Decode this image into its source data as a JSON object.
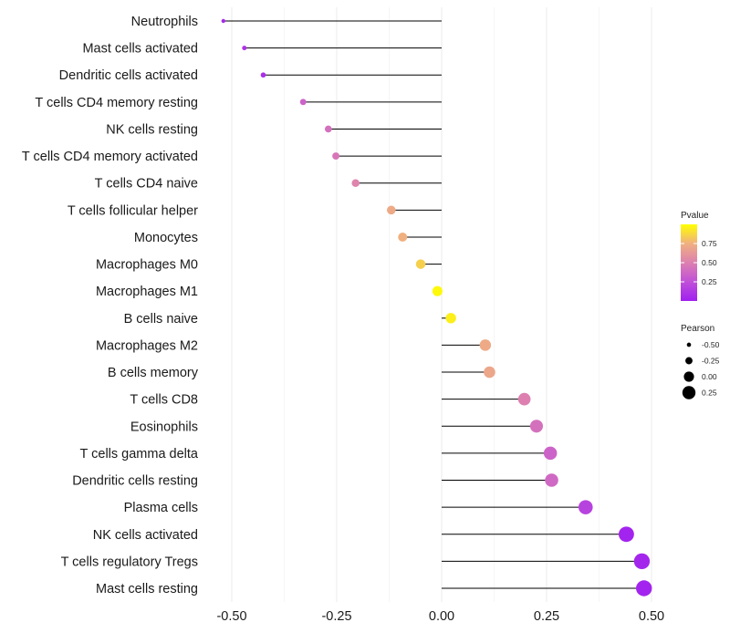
{
  "chart_data": {
    "type": "lollipop",
    "title": "",
    "xlabel": "",
    "ylabel": "",
    "xlim": [
      -0.55,
      0.52
    ],
    "xticks": [
      -0.5,
      -0.25,
      0.0,
      0.25,
      0.5
    ],
    "xtick_labels": [
      "-0.50",
      "-0.25",
      "0.00",
      "0.25",
      "0.50"
    ],
    "grid": true,
    "categories": [
      "Neutrophils",
      "Mast cells activated",
      "Dendritic cells activated",
      "T cells CD4 memory resting",
      "NK cells resting",
      "T cells CD4 memory activated",
      "T cells CD4 naive",
      "T cells follicular helper",
      "Monocytes",
      "Macrophages M0",
      "Macrophages M1",
      "B cells naive",
      "Macrophages M2",
      "B cells memory",
      "T cells CD8",
      "Eosinophils",
      "T cells gamma delta",
      "Dendritic cells resting",
      "Plasma cells",
      "NK cells activated",
      "T cells regulatory  Tregs ",
      "Mast cells resting"
    ],
    "pearson": [
      -0.52,
      -0.47,
      -0.425,
      -0.33,
      -0.27,
      -0.252,
      -0.205,
      -0.12,
      -0.093,
      -0.05,
      -0.01,
      0.022,
      0.104,
      0.114,
      0.197,
      0.226,
      0.259,
      0.262,
      0.343,
      0.44,
      0.477,
      0.482
    ],
    "pvalue": [
      0.05,
      0.1,
      0.08,
      0.35,
      0.42,
      0.45,
      0.52,
      0.72,
      0.75,
      0.85,
      0.98,
      0.95,
      0.72,
      0.7,
      0.5,
      0.42,
      0.35,
      0.38,
      0.18,
      0.02,
      0.03,
      0.02
    ],
    "color_legend": {
      "title": "Pvalue",
      "ticks": [
        0.75,
        0.5,
        0.25
      ],
      "tick_labels": [
        "0.75",
        "0.50",
        "0.25"
      ],
      "range": [
        0.0,
        1.0
      ],
      "colors": [
        "#a020f0",
        "#c050d8",
        "#dd80b0",
        "#f0b080",
        "#ffff00"
      ]
    },
    "size_legend": {
      "title": "Pearson",
      "values": [
        -0.5,
        -0.25,
        0.0,
        0.25
      ],
      "labels": [
        "-0.50",
        "-0.25",
        "0.00",
        "0.25"
      ]
    }
  }
}
